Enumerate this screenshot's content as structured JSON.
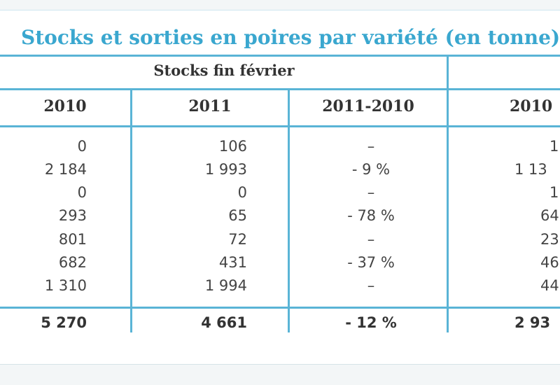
{
  "title": "Stocks et sorties en poires par variété (en tonne)",
  "group_headers": {
    "stocks": "Stocks fin février"
  },
  "columns": [
    "2010",
    "2011",
    "2011-2010",
    "2010"
  ],
  "rows": [
    [
      "0",
      "106",
      "–",
      "1"
    ],
    [
      "2 184",
      "1 993",
      "- 9 %",
      "1 13"
    ],
    [
      "0",
      "0",
      "–",
      "1"
    ],
    [
      "293",
      "65",
      "- 78 %",
      "64"
    ],
    [
      "801",
      "72",
      "–",
      "23"
    ],
    [
      "682",
      "431",
      "- 37 %",
      "46"
    ],
    [
      "1 310",
      "1 994",
      "–",
      "44"
    ]
  ],
  "total": [
    "5 270",
    "4 661",
    "- 12 %",
    "2 93"
  ],
  "colors": {
    "title": "#3aa7cf",
    "rule": "#5ab4d6"
  }
}
